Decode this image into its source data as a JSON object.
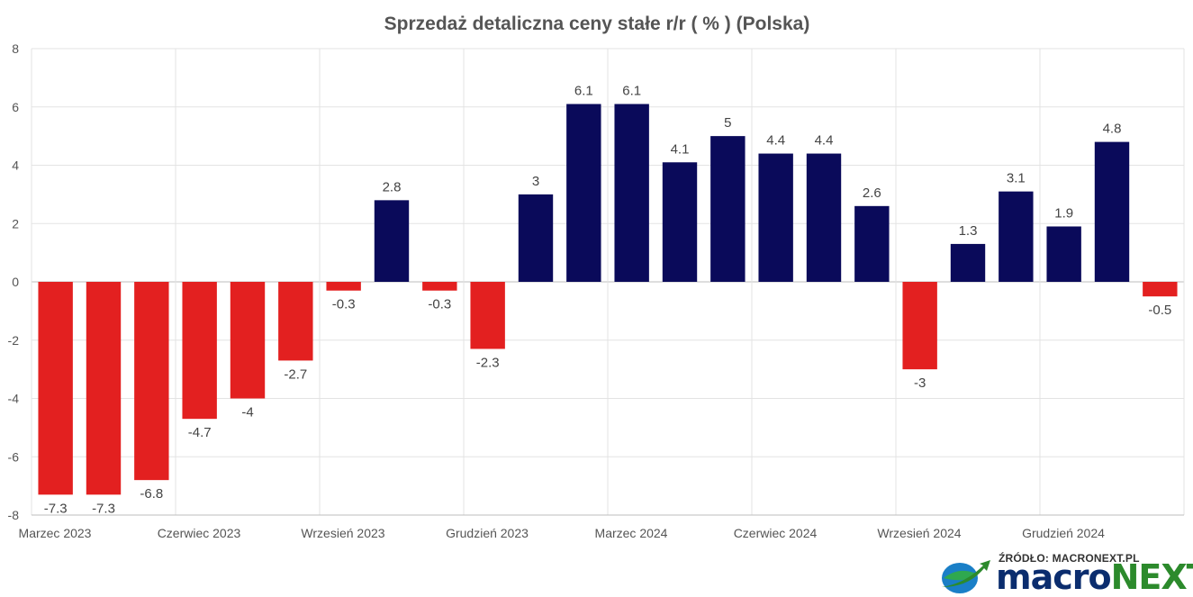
{
  "chart_data": {
    "type": "bar",
    "title": "Sprzedaż detaliczna ceny stałe r/r ( % ) (Polska)",
    "xlabel": "",
    "ylabel": "",
    "ylim": [
      -8,
      8
    ],
    "yticks": [
      -8,
      -6,
      -4,
      -2,
      0,
      2,
      4,
      6,
      8
    ],
    "grid": true,
    "positive_color": "#0a0a5a",
    "negative_color": "#e32020",
    "x_tick_labels": [
      {
        "index": 0,
        "label": "Marzec 2023"
      },
      {
        "index": 3,
        "label": "Czerwiec 2023"
      },
      {
        "index": 6,
        "label": "Wrzesień 2023"
      },
      {
        "index": 9,
        "label": "Grudzień 2023"
      },
      {
        "index": 12,
        "label": "Marzec 2024"
      },
      {
        "index": 15,
        "label": "Czerwiec 2024"
      },
      {
        "index": 18,
        "label": "Wrzesień 2024"
      },
      {
        "index": 21,
        "label": "Grudzień 2024"
      }
    ],
    "values": [
      -7.3,
      -7.3,
      -6.8,
      -4.7,
      -4,
      -2.7,
      -0.3,
      2.8,
      -0.3,
      -2.3,
      3,
      6.1,
      6.1,
      4.1,
      5,
      4.4,
      4.4,
      2.6,
      -3,
      1.3,
      3.1,
      1.9,
      4.8,
      -0.5
    ]
  },
  "source": {
    "label": "ŹRÓDŁO: MACRONEXT.PL",
    "brand_part1": "macro",
    "brand_part2": "NEXT",
    "logo_icon": "globe-arrow-icon"
  }
}
